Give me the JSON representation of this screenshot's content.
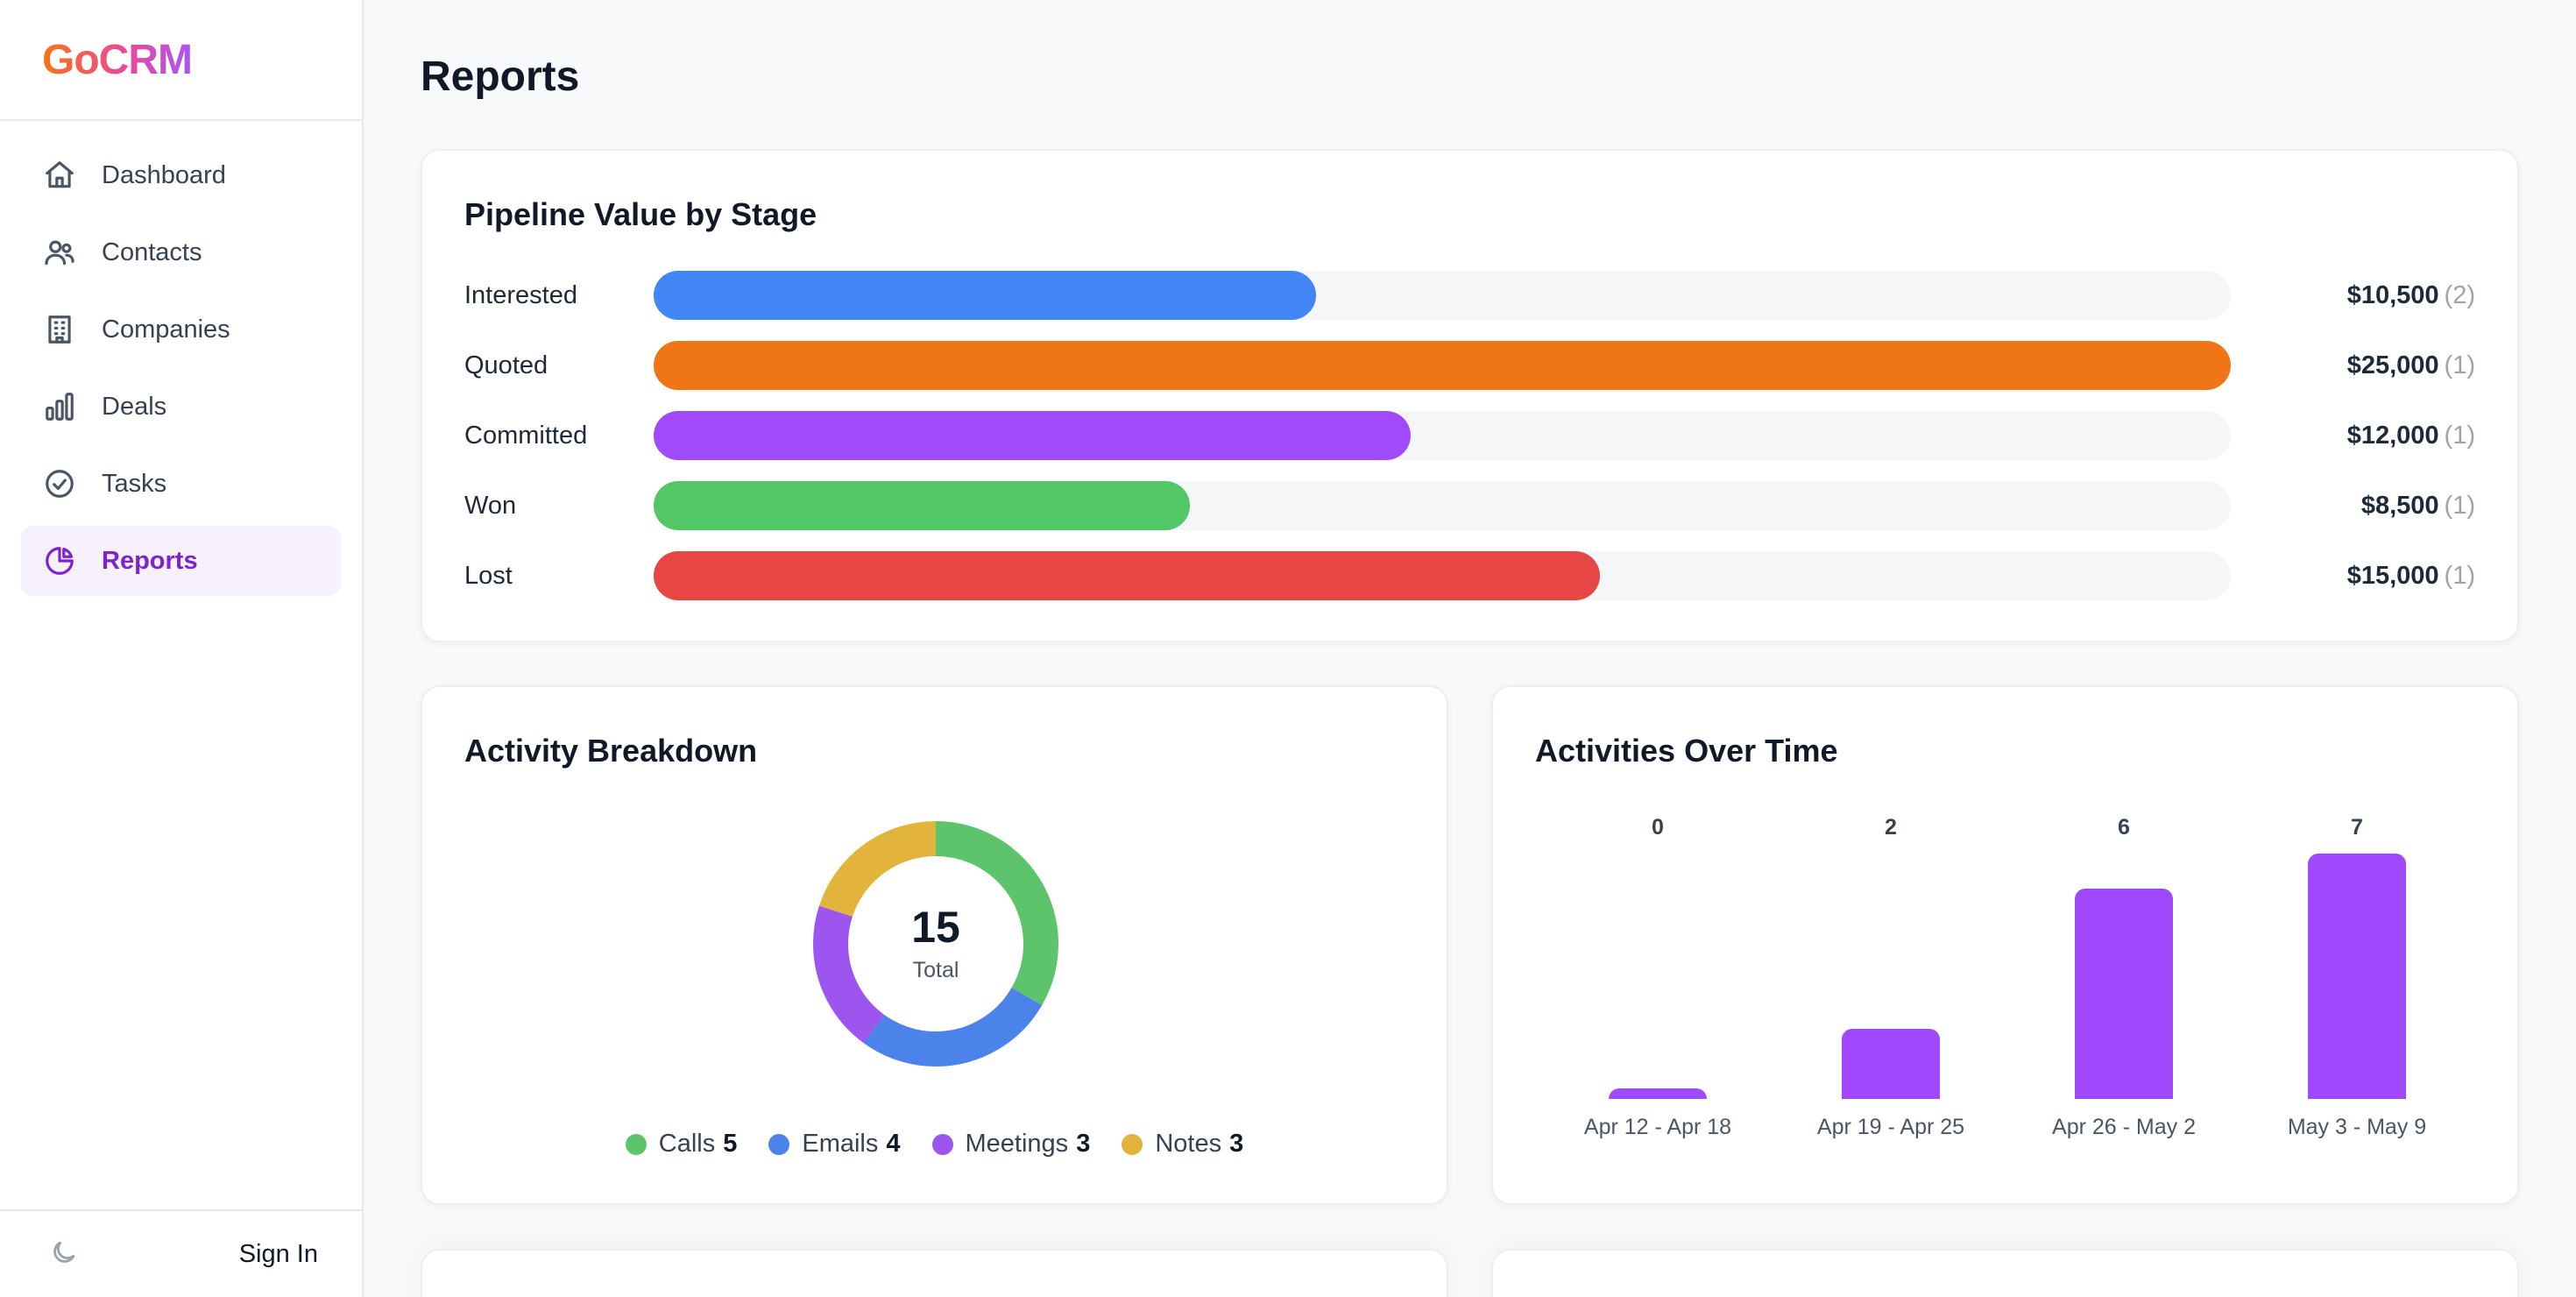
{
  "brand": {
    "name": "GoCRM"
  },
  "sidebar": {
    "items": [
      {
        "label": "Dashboard",
        "icon": "home-icon",
        "active": false
      },
      {
        "label": "Contacts",
        "icon": "users-icon",
        "active": false
      },
      {
        "label": "Companies",
        "icon": "building-icon",
        "active": false
      },
      {
        "label": "Deals",
        "icon": "bar-chart-icon",
        "active": false
      },
      {
        "label": "Tasks",
        "icon": "check-circle-icon",
        "active": false
      },
      {
        "label": "Reports",
        "icon": "pie-chart-icon",
        "active": true
      }
    ],
    "footer": {
      "theme_icon": "moon-icon",
      "signin_label": "Sign In"
    }
  },
  "page": {
    "title": "Reports"
  },
  "pipeline": {
    "title": "Pipeline Value by Stage",
    "stages": [
      {
        "label": "Interested",
        "value": "$10,500",
        "count": "(2)",
        "amount": 10500,
        "color": "#4285f4"
      },
      {
        "label": "Quoted",
        "value": "$25,000",
        "count": "(1)",
        "amount": 25000,
        "color": "#f07516"
      },
      {
        "label": "Committed",
        "value": "$12,000",
        "count": "(1)",
        "amount": 12000,
        "color": "#a04afb"
      },
      {
        "label": "Won",
        "value": "$8,500",
        "count": "(1)",
        "amount": 8500,
        "color": "#51c765"
      },
      {
        "label": "Lost",
        "value": "$15,000",
        "count": "(1)",
        "amount": 15000,
        "color": "#e84545"
      }
    ]
  },
  "breakdown": {
    "title": "Activity Breakdown",
    "total": "15",
    "total_label": "Total",
    "items": [
      {
        "label": "Calls",
        "count": "5",
        "value": 5,
        "color": "#5ec46c"
      },
      {
        "label": "Emails",
        "count": "4",
        "value": 4,
        "color": "#4b83ea"
      },
      {
        "label": "Meetings",
        "count": "3",
        "value": 3,
        "color": "#9d55f0"
      },
      {
        "label": "Notes",
        "count": "3",
        "value": 3,
        "color": "#e3b43b"
      }
    ]
  },
  "overtime": {
    "title": "Activities Over Time",
    "color": "#a048fb"
  },
  "chart_data": [
    {
      "type": "bar",
      "title": "Pipeline Value by Stage",
      "categories": [
        "Interested",
        "Quoted",
        "Committed",
        "Won",
        "Lost"
      ],
      "values": [
        10500,
        25000,
        12000,
        8500,
        15000
      ],
      "counts": [
        2,
        1,
        1,
        1,
        1
      ],
      "orientation": "horizontal"
    },
    {
      "type": "pie",
      "title": "Activity Breakdown",
      "categories": [
        "Calls",
        "Emails",
        "Meetings",
        "Notes"
      ],
      "values": [
        5,
        4,
        3,
        3
      ],
      "total": 15,
      "donut": true
    },
    {
      "type": "bar",
      "title": "Activities Over Time",
      "categories": [
        "Apr 12 - Apr 18",
        "Apr 19 - Apr 25",
        "Apr 26 - May 2",
        "May 3 - May 9"
      ],
      "values": [
        0,
        2,
        6,
        7
      ],
      "grid": false
    }
  ]
}
